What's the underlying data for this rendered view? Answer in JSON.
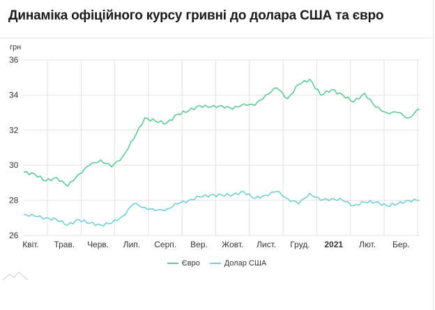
{
  "title": "Динаміка офіційного курсу гривні до долара США та євро",
  "unit": "грн",
  "colors": {
    "euro": "#5cc99a",
    "usd": "#6fd0d6",
    "grid": "#e2e2e2"
  },
  "chart_data": {
    "type": "line",
    "title": "Динаміка офіційного курсу гривні до долара США та євро",
    "ylabel": "грн",
    "xlabel": "",
    "ylim": [
      26,
      36
    ],
    "yticks": [
      "26",
      "28",
      "30",
      "32",
      "34",
      "36"
    ],
    "xticks": [
      "Квіт.",
      "Трав.",
      "Черв.",
      "Лип.",
      "Серп.",
      "Вер.",
      "Жовт.",
      "Лист.",
      "Груд.",
      "2021",
      "Лют.",
      "Бер."
    ],
    "bold_ticks": [
      "2021"
    ],
    "grid": true,
    "legend": "bottom",
    "x": [
      "Квіт.",
      "",
      "",
      "Трав.",
      "",
      "",
      "Черв.",
      "",
      "",
      "Лип.",
      "",
      "",
      "Серп.",
      "",
      "",
      "Вер.",
      "",
      "",
      "Жовт.",
      "",
      "",
      "Лист.",
      "",
      "",
      "Груд.",
      "",
      "",
      "2021",
      "",
      "",
      "Лют.",
      "",
      "",
      "Бер.",
      "",
      "",
      ""
    ],
    "series": [
      {
        "name": "Євро",
        "values": [
          29.6,
          29.5,
          29.1,
          29.3,
          28.8,
          29.5,
          30.0,
          30.3,
          29.9,
          30.5,
          31.5,
          32.7,
          32.5,
          32.4,
          32.9,
          33.1,
          33.4,
          33.3,
          33.4,
          33.2,
          33.5,
          33.4,
          34.0,
          34.4,
          33.8,
          34.6,
          34.9,
          34.0,
          34.3,
          34.0,
          33.6,
          34.1,
          33.3,
          33.0,
          33.0,
          32.7,
          33.2
        ]
      },
      {
        "name": "Долар США",
        "values": [
          27.2,
          27.1,
          27.0,
          26.9,
          26.6,
          26.9,
          26.7,
          26.6,
          26.7,
          27.1,
          27.8,
          27.6,
          27.4,
          27.5,
          27.8,
          28.0,
          28.2,
          28.3,
          28.3,
          28.3,
          28.5,
          28.1,
          28.3,
          28.5,
          28.1,
          27.8,
          28.4,
          28.0,
          28.1,
          28.0,
          27.7,
          27.9,
          27.9,
          27.7,
          27.8,
          28.0,
          28.0
        ]
      }
    ]
  }
}
